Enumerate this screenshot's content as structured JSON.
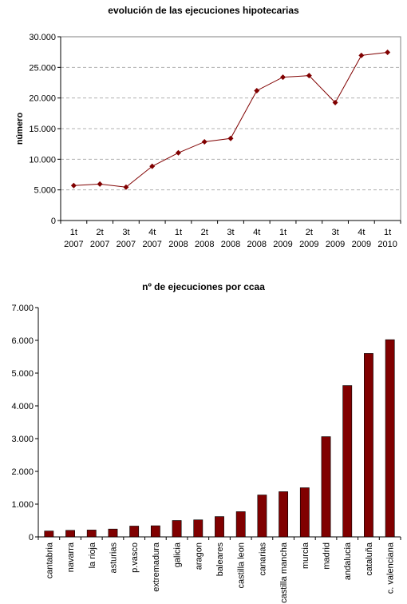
{
  "chart_data": [
    {
      "type": "line",
      "title": "evolución de las ejecuciones hipotecarias",
      "xlabel": "",
      "ylabel": "número",
      "ylim": [
        0,
        30000
      ],
      "yticks": [
        "0",
        "5.000",
        "10.000",
        "15.000",
        "20.000",
        "25.000",
        "30.000"
      ],
      "grid": "horizontal dashed",
      "color": "#800000",
      "categories": [
        [
          "1t",
          "2007"
        ],
        [
          "2t",
          "2007"
        ],
        [
          "3t",
          "2007"
        ],
        [
          "4t",
          "2007"
        ],
        [
          "1t",
          "2008"
        ],
        [
          "2t",
          "2008"
        ],
        [
          "3t",
          "2008"
        ],
        [
          "4t",
          "2008"
        ],
        [
          "1t",
          "2009"
        ],
        [
          "2t",
          "2009"
        ],
        [
          "3t",
          "2009"
        ],
        [
          "4t",
          "2009"
        ],
        [
          "1t",
          "2010"
        ]
      ],
      "values": [
        5700,
        5950,
        5450,
        8850,
        11050,
        12850,
        13400,
        21200,
        23400,
        23650,
        19250,
        26950,
        27450
      ]
    },
    {
      "type": "bar",
      "title": "nº de ejecuciones por ccaa",
      "xlabel": "",
      "ylabel": "",
      "ylim": [
        0,
        7000
      ],
      "yticks": [
        "0",
        "1.000",
        "2.000",
        "3.000",
        "4.000",
        "5.000",
        "6.000",
        "7.000"
      ],
      "grid": "none",
      "color": "#800000",
      "categories": [
        "cantabria",
        "navarra",
        "la rioja",
        "asturias",
        "p.vasco",
        "extremadura",
        "galicia",
        "aragon",
        "baleares",
        "castilla leon",
        "canarias",
        "castilla mancha",
        "murcia",
        "madrid",
        "andalucia",
        "cataluña",
        "c. valenciana"
      ],
      "values": [
        180,
        200,
        210,
        240,
        330,
        340,
        500,
        520,
        620,
        770,
        1280,
        1380,
        1500,
        3060,
        4620,
        5600,
        6020
      ]
    }
  ]
}
